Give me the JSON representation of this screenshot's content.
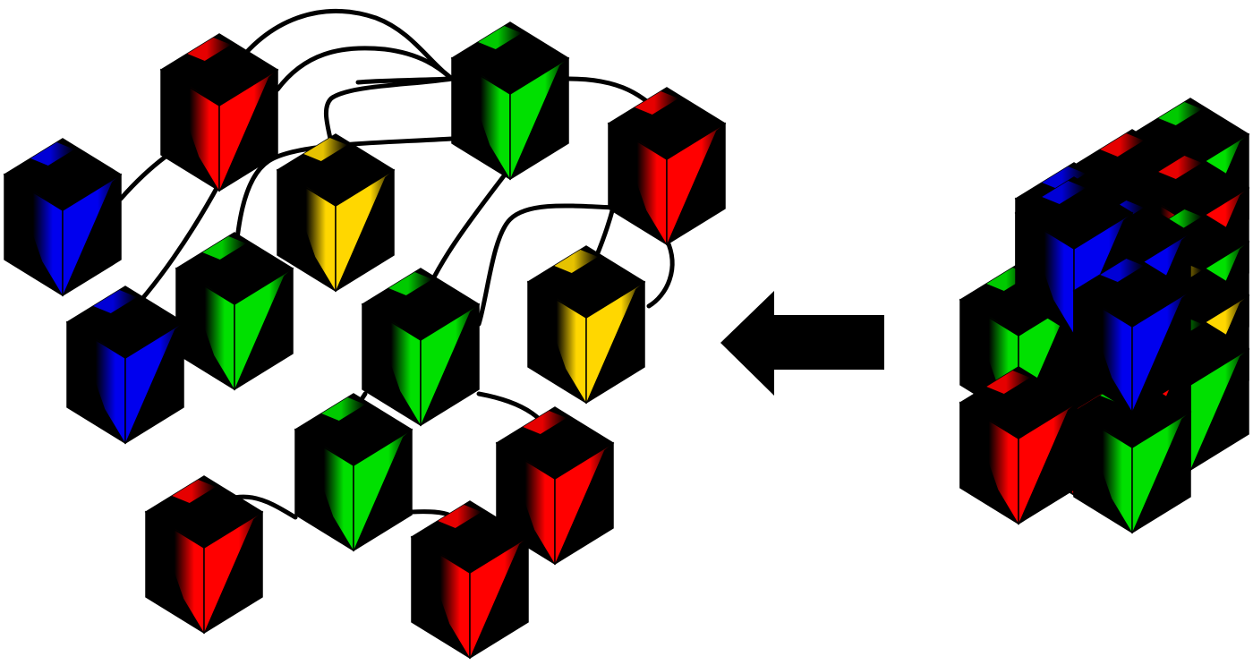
{
  "colors": {
    "red": "#ff0000",
    "green": "#00e000",
    "blue": "#0000ee",
    "yellow": "#ffd700",
    "black": "#000000",
    "background": "#ffffff"
  },
  "network": {
    "cubes": [
      {
        "id": "red-top",
        "color": "red"
      },
      {
        "id": "blue-left",
        "color": "blue"
      },
      {
        "id": "green-top",
        "color": "green"
      },
      {
        "id": "yellow-upper",
        "color": "yellow"
      },
      {
        "id": "red-right",
        "color": "red"
      },
      {
        "id": "green-mid-left",
        "color": "green"
      },
      {
        "id": "blue-mid",
        "color": "blue"
      },
      {
        "id": "green-center",
        "color": "green"
      },
      {
        "id": "yellow-right",
        "color": "yellow"
      },
      {
        "id": "green-lower",
        "color": "green"
      },
      {
        "id": "red-lower-right",
        "color": "red"
      },
      {
        "id": "red-bottom-left",
        "color": "red"
      },
      {
        "id": "red-bottom-mid",
        "color": "red"
      }
    ]
  },
  "arrow": {
    "direction": "left",
    "icon": "arrow-left-icon"
  },
  "assembled_block": {
    "cubes": [
      {
        "color": "green"
      },
      {
        "color": "red"
      },
      {
        "color": "blue"
      },
      {
        "color": "red"
      },
      {
        "color": "green"
      },
      {
        "color": "yellow"
      },
      {
        "color": "blue"
      },
      {
        "color": "green"
      },
      {
        "color": "red"
      },
      {
        "color": "red"
      },
      {
        "color": "green"
      },
      {
        "color": "red"
      }
    ]
  }
}
